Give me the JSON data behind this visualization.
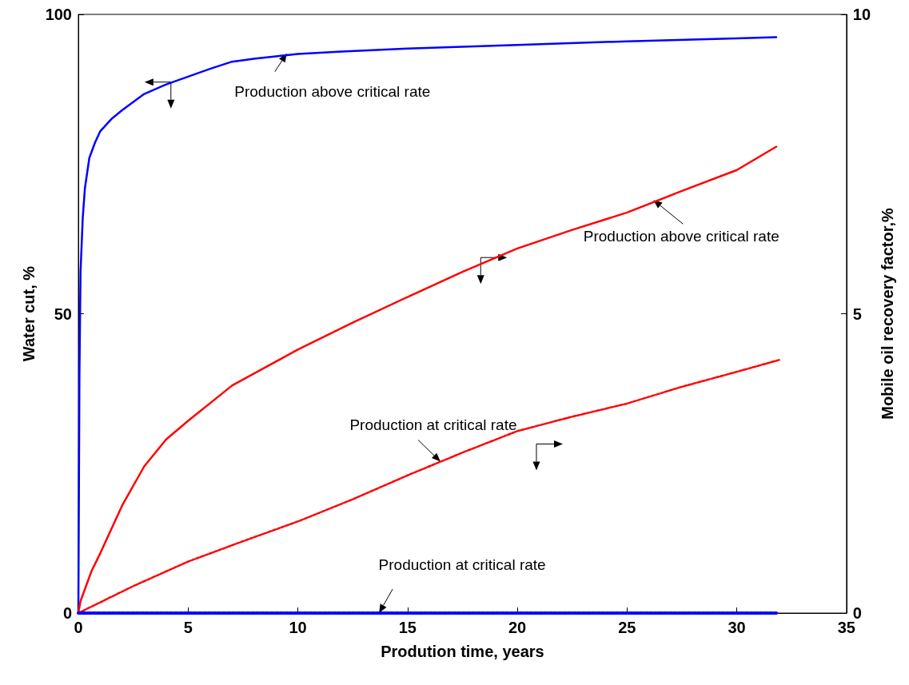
{
  "chart_data": {
    "type": "line",
    "xlabel": "Prodution time, years",
    "ylabel": "Water cut, %",
    "y2label": "Mobile oil recovery factor,%",
    "xlim": [
      0,
      35
    ],
    "xticks": [
      0,
      5,
      10,
      15,
      20,
      25,
      30,
      35
    ],
    "ylim": [
      0,
      100
    ],
    "yticks": [
      0,
      50,
      100
    ],
    "y2lim": [
      0,
      10
    ],
    "y2ticks": [
      0,
      5,
      10
    ],
    "grid": false,
    "marker": "none",
    "series": [
      {
        "color": "#0000ff",
        "line_style": "solid",
        "x": [
          0,
          0.05,
          0.1,
          0.2,
          0.3,
          0.5,
          0.75,
          1,
          1.5,
          2,
          3,
          4,
          5,
          6,
          7,
          8,
          10,
          12,
          15,
          20,
          25,
          30,
          31.8
        ],
        "values": [
          0,
          40,
          57,
          66,
          71,
          76,
          78.5,
          80.5,
          82.5,
          84,
          86.7,
          88.3,
          89.6,
          90.9,
          92.1,
          92.6,
          93.4,
          93.8,
          94.3,
          94.9,
          95.5,
          96,
          96.2
        ]
      },
      {
        "color": "#ff0000",
        "line_style": "solid",
        "axis": "y2",
        "x": [
          0,
          0.1,
          0.3,
          0.6,
          1,
          2,
          3,
          4,
          5,
          7,
          10,
          12.5,
          15,
          17.5,
          20,
          22.5,
          25,
          27.5,
          30,
          31.8
        ],
        "values": [
          0,
          0.2,
          0.4,
          0.7,
          1.0,
          1.8,
          2.45,
          2.9,
          3.21,
          3.8,
          4.4,
          4.85,
          5.28,
          5.7,
          6.09,
          6.4,
          6.69,
          7.05,
          7.4,
          7.79
        ]
      },
      {
        "color": "#ff0000",
        "line_style": "dashed",
        "axis": "y2",
        "x": [
          0,
          2.5,
          5,
          7.5,
          10,
          12.5,
          15,
          17.5,
          20,
          22.5,
          25,
          27.5,
          30,
          31.95
        ],
        "values": [
          0,
          0.45,
          0.86,
          1.2,
          1.53,
          1.9,
          2.3,
          2.68,
          3.04,
          3.28,
          3.5,
          3.78,
          4.03,
          4.23
        ]
      },
      {
        "color": "#0000ff",
        "line_style": "dashed",
        "x": [
          0,
          31.8
        ],
        "values": [
          0,
          0
        ]
      }
    ],
    "annotations": [
      {
        "text": "Production above critical rate",
        "x": 9.5,
        "y": 93.5
      },
      {
        "text": "Production above critical rate",
        "x": 26.2,
        "y": 69
      },
      {
        "text": "Production at critical rate",
        "x": 16.5,
        "y": 25.3
      },
      {
        "text": "Production at critical rate",
        "x": 13.7,
        "y": 0
      }
    ]
  }
}
